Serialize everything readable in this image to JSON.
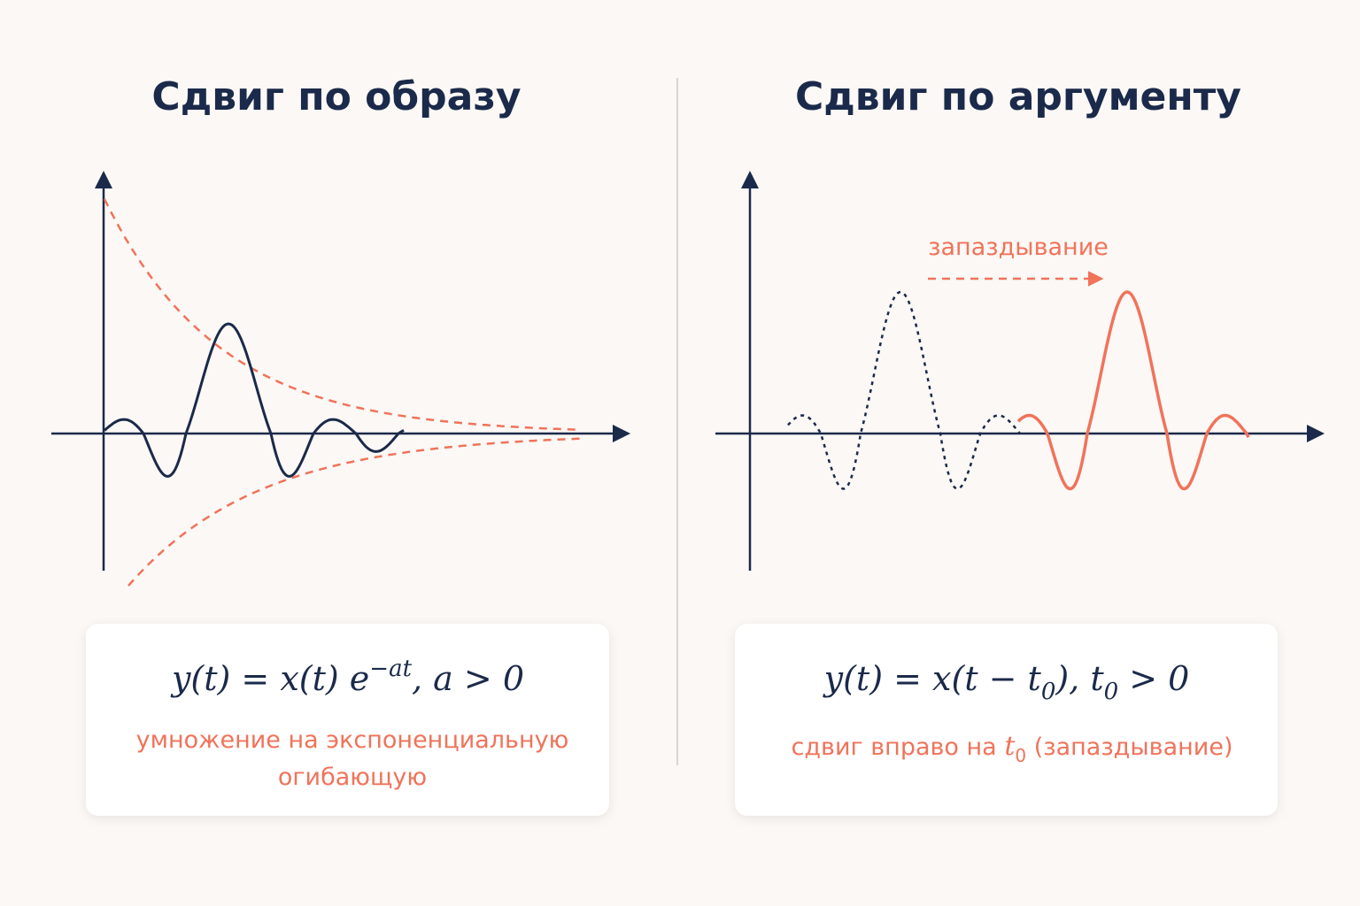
{
  "left": {
    "title": "Сдвиг по образу",
    "formula": [
      "y(t) = x(t) e",
      "−at",
      ", a > 0"
    ],
    "caption": [
      "умножение на экспоненциальную",
      "огибающую"
    ]
  },
  "right": {
    "title": "Сдвиг по аргументу",
    "annotation": "запаздывание",
    "formula": [
      "y(t) = x(t − t",
      "0",
      "),  t",
      "0",
      " > 0"
    ],
    "caption": [
      "сдвиг вправо на ",
      "t",
      "0",
      " (запаздывание)"
    ]
  }
}
